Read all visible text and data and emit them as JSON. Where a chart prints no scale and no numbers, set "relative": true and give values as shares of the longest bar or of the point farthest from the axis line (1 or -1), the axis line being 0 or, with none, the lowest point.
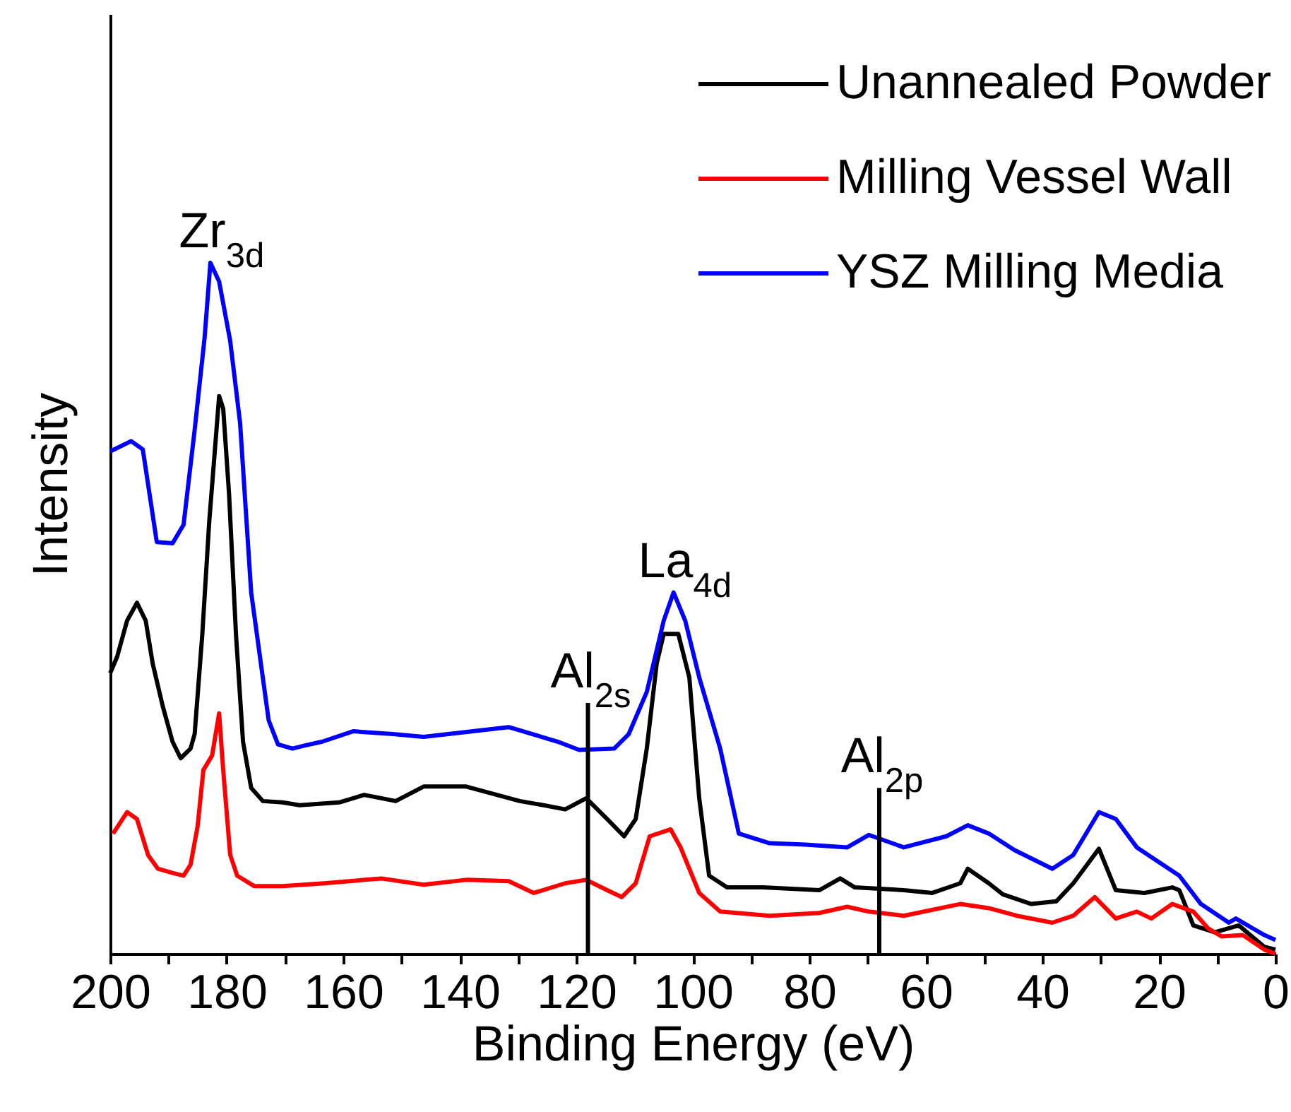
{
  "chart_data": {
    "type": "line",
    "xlabel": "Binding Energy (eV)",
    "ylabel": "Intensity",
    "relative": true,
    "xlim": [
      200,
      0
    ],
    "xticks": [
      200,
      {
        "value": 190,
        "label": null
      },
      180,
      {
        "value": 170,
        "label": null
      },
      160,
      {
        "value": 150,
        "label": null
      },
      140,
      {
        "value": 130,
        "label": null
      },
      120,
      {
        "value": 110,
        "label": null
      },
      100,
      {
        "value": 90,
        "label": null
      },
      80,
      {
        "value": 70,
        "label": null
      },
      60,
      {
        "value": 50,
        "label": null
      },
      40,
      {
        "value": 30,
        "label": null
      },
      20,
      {
        "value": 10,
        "label": null
      },
      0
    ],
    "legend": "top right",
    "line_style": "solid",
    "marker": "none",
    "series": [
      {
        "name": "Unannealed Powder",
        "color": "#000000",
        "x": [
          200,
          198.8,
          197.1,
          195.4,
          193.9,
          192.7,
          191.0,
          189.3,
          187.9,
          186.2,
          185.5,
          184.2,
          183.0,
          181.3,
          180.6,
          179.6,
          178.4,
          177.2,
          175.8,
          173.8,
          170.4,
          167.5,
          160.7,
          156.4,
          151.0,
          146.2,
          138.9,
          129.7,
          125.6,
          121.9,
          118.3,
          114.7,
          111.8,
          109.8,
          107.9,
          106.2,
          105.0,
          102.5,
          100.6,
          98.9,
          97.2,
          94.1,
          88.0,
          78.3,
          74.7,
          72.2,
          63.8,
          58.9,
          54.1,
          52.8,
          49.2,
          46.8,
          41.9,
          37.6,
          34.7,
          30.3,
          27.4,
          22.5,
          17.7,
          16.5,
          14.1,
          10.4,
          6.3,
          1.9,
          0
        ],
        "values": [
          0.406,
          0.43,
          0.482,
          0.508,
          0.482,
          0.42,
          0.359,
          0.307,
          0.283,
          0.297,
          0.318,
          0.461,
          0.625,
          0.807,
          0.789,
          0.666,
          0.461,
          0.307,
          0.24,
          0.221,
          0.219,
          0.215,
          0.219,
          0.23,
          0.221,
          0.242,
          0.242,
          0.221,
          0.215,
          0.209,
          0.225,
          0.195,
          0.17,
          0.195,
          0.297,
          0.42,
          0.463,
          0.463,
          0.4,
          0.225,
          0.113,
          0.096,
          0.096,
          0.092,
          0.109,
          0.096,
          0.092,
          0.088,
          0.102,
          0.123,
          0.102,
          0.086,
          0.072,
          0.076,
          0.102,
          0.152,
          0.092,
          0.088,
          0.096,
          0.092,
          0.041,
          0.031,
          0.041,
          0.01,
          0.006
        ]
      },
      {
        "name": "Milling Vessel Wall",
        "color": "#ff0000",
        "x": [
          199.5,
          197.1,
          195.4,
          193.5,
          191.8,
          189.3,
          187.4,
          186.2,
          185.0,
          184.0,
          182.5,
          181.3,
          180.6,
          179.4,
          178.2,
          175.3,
          170.4,
          163.2,
          153.5,
          146.2,
          138.9,
          131.6,
          127.3,
          121.9,
          118.3,
          117.1,
          114.7,
          112.2,
          109.8,
          107.4,
          103.8,
          102.1,
          98.9,
          95.3,
          86.8,
          78.3,
          73.5,
          69.8,
          63.8,
          54.1,
          49.2,
          44.4,
          38.3,
          34.7,
          31.0,
          27.4,
          23.8,
          21.3,
          17.7,
          14.1,
          11.6,
          9.2,
          5.6,
          1.9,
          0
        ],
        "values": [
          0.174,
          0.205,
          0.195,
          0.143,
          0.123,
          0.117,
          0.113,
          0.129,
          0.184,
          0.266,
          0.287,
          0.348,
          0.266,
          0.143,
          0.113,
          0.098,
          0.098,
          0.102,
          0.109,
          0.1,
          0.107,
          0.105,
          0.088,
          0.102,
          0.107,
          0.102,
          0.092,
          0.082,
          0.102,
          0.17,
          0.18,
          0.154,
          0.088,
          0.061,
          0.055,
          0.059,
          0.068,
          0.061,
          0.055,
          0.072,
          0.066,
          0.055,
          0.045,
          0.055,
          0.082,
          0.051,
          0.061,
          0.051,
          0.072,
          0.061,
          0.037,
          0.025,
          0.027,
          0.006,
          0
        ]
      },
      {
        "name": "YSZ Milling Media",
        "color": "#0000ff",
        "x": [
          200,
          196.4,
          194.4,
          192.0,
          189.3,
          187.4,
          185.5,
          183.8,
          182.8,
          181.3,
          179.4,
          177.7,
          175.8,
          172.8,
          171.2,
          168.7,
          166.8,
          163.6,
          158.3,
          151.5,
          146.2,
          131.6,
          123.2,
          119.5,
          113.5,
          111.0,
          107.9,
          105.0,
          103.3,
          101.3,
          98.9,
          95.3,
          92.1,
          86.8,
          80.7,
          73.5,
          69.8,
          63.8,
          56.5,
          52.8,
          49.2,
          44.8,
          38.3,
          34.7,
          30.3,
          27.4,
          23.8,
          16.5,
          12.8,
          8.0,
          6.8,
          1.9,
          0
        ],
        "values": [
          0.727,
          0.742,
          0.73,
          0.596,
          0.594,
          0.621,
          0.758,
          0.891,
          1,
          0.973,
          0.887,
          0.768,
          0.523,
          0.338,
          0.303,
          0.297,
          0.301,
          0.307,
          0.322,
          0.318,
          0.314,
          0.328,
          0.307,
          0.295,
          0.297,
          0.318,
          0.379,
          0.482,
          0.523,
          0.482,
          0.4,
          0.297,
          0.174,
          0.16,
          0.158,
          0.154,
          0.172,
          0.154,
          0.17,
          0.186,
          0.174,
          0.15,
          0.123,
          0.143,
          0.205,
          0.195,
          0.154,
          0.113,
          0.072,
          0.045,
          0.051,
          0.027,
          0.02
        ]
      }
    ],
    "annotations": [
      {
        "text": "Zr$_{3d}$",
        "x": 182.8,
        "y": 1
      },
      {
        "text": "La$_{4d}$",
        "x": 103.3,
        "y": 0.523
      }
    ],
    "ref_lines": [
      {
        "axis": "x",
        "value": 118,
        "label": "Al$_{2s}$"
      },
      {
        "axis": "x",
        "value": 68,
        "label": "Al$_{2p}$"
      }
    ]
  }
}
